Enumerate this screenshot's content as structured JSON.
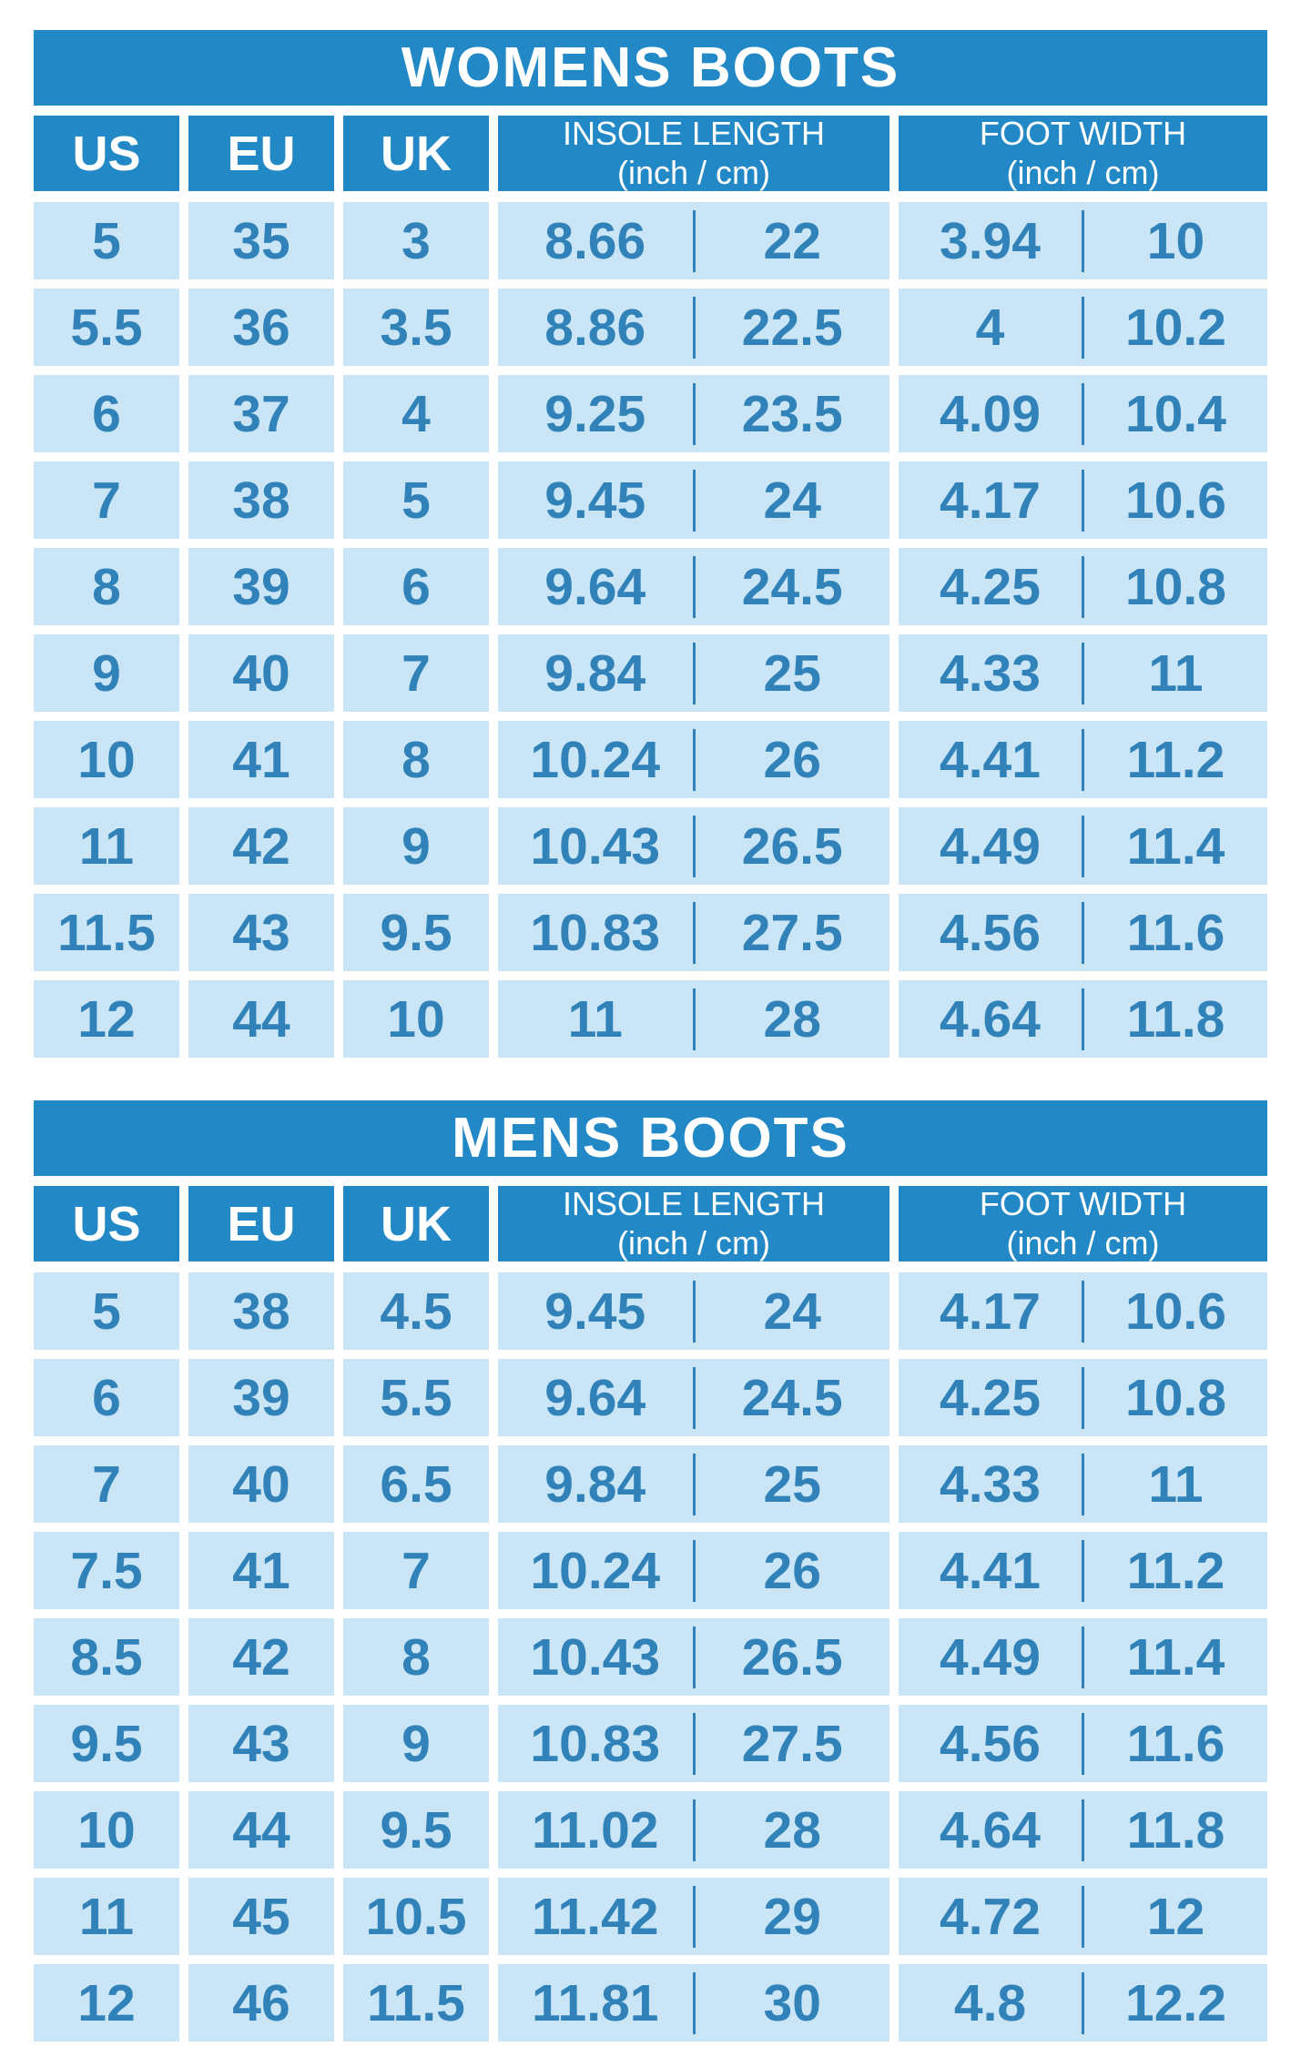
{
  "colors": {
    "header_blue": "#2389C6",
    "cell_blue": "#C9E5F6",
    "text_blue": "#3182B8",
    "page_bg": "#FFFFFF",
    "header_text": "#FFFFFF"
  },
  "column_headers": {
    "us": "US",
    "eu": "EU",
    "uk": "UK",
    "insole_length": {
      "title": "INSOLE LENGTH",
      "unit": "(inch / cm)"
    },
    "foot_width": {
      "title": "FOOT WIDTH",
      "unit": "(inch / cm)"
    }
  },
  "tables": [
    {
      "title": "WOMENS BOOTS",
      "rows": [
        {
          "us": "5",
          "eu": "35",
          "uk": "3",
          "insole_inch": "8.66",
          "insole_cm": "22",
          "foot_inch": "3.94",
          "foot_cm": "10"
        },
        {
          "us": "5.5",
          "eu": "36",
          "uk": "3.5",
          "insole_inch": "8.86",
          "insole_cm": "22.5",
          "foot_inch": "4",
          "foot_cm": "10.2"
        },
        {
          "us": "6",
          "eu": "37",
          "uk": "4",
          "insole_inch": "9.25",
          "insole_cm": "23.5",
          "foot_inch": "4.09",
          "foot_cm": "10.4"
        },
        {
          "us": "7",
          "eu": "38",
          "uk": "5",
          "insole_inch": "9.45",
          "insole_cm": "24",
          "foot_inch": "4.17",
          "foot_cm": "10.6"
        },
        {
          "us": "8",
          "eu": "39",
          "uk": "6",
          "insole_inch": "9.64",
          "insole_cm": "24.5",
          "foot_inch": "4.25",
          "foot_cm": "10.8"
        },
        {
          "us": "9",
          "eu": "40",
          "uk": "7",
          "insole_inch": "9.84",
          "insole_cm": "25",
          "foot_inch": "4.33",
          "foot_cm": "11"
        },
        {
          "us": "10",
          "eu": "41",
          "uk": "8",
          "insole_inch": "10.24",
          "insole_cm": "26",
          "foot_inch": "4.41",
          "foot_cm": "11.2"
        },
        {
          "us": "11",
          "eu": "42",
          "uk": "9",
          "insole_inch": "10.43",
          "insole_cm": "26.5",
          "foot_inch": "4.49",
          "foot_cm": "11.4"
        },
        {
          "us": "11.5",
          "eu": "43",
          "uk": "9.5",
          "insole_inch": "10.83",
          "insole_cm": "27.5",
          "foot_inch": "4.56",
          "foot_cm": "11.6"
        },
        {
          "us": "12",
          "eu": "44",
          "uk": "10",
          "insole_inch": "11",
          "insole_cm": "28",
          "foot_inch": "4.64",
          "foot_cm": "11.8"
        }
      ]
    },
    {
      "title": "MENS BOOTS",
      "rows": [
        {
          "us": "5",
          "eu": "38",
          "uk": "4.5",
          "insole_inch": "9.45",
          "insole_cm": "24",
          "foot_inch": "4.17",
          "foot_cm": "10.6"
        },
        {
          "us": "6",
          "eu": "39",
          "uk": "5.5",
          "insole_inch": "9.64",
          "insole_cm": "24.5",
          "foot_inch": "4.25",
          "foot_cm": "10.8"
        },
        {
          "us": "7",
          "eu": "40",
          "uk": "6.5",
          "insole_inch": "9.84",
          "insole_cm": "25",
          "foot_inch": "4.33",
          "foot_cm": "11"
        },
        {
          "us": "7.5",
          "eu": "41",
          "uk": "7",
          "insole_inch": "10.24",
          "insole_cm": "26",
          "foot_inch": "4.41",
          "foot_cm": "11.2"
        },
        {
          "us": "8.5",
          "eu": "42",
          "uk": "8",
          "insole_inch": "10.43",
          "insole_cm": "26.5",
          "foot_inch": "4.49",
          "foot_cm": "11.4"
        },
        {
          "us": "9.5",
          "eu": "43",
          "uk": "9",
          "insole_inch": "10.83",
          "insole_cm": "27.5",
          "foot_inch": "4.56",
          "foot_cm": "11.6"
        },
        {
          "us": "10",
          "eu": "44",
          "uk": "9.5",
          "insole_inch": "11.02",
          "insole_cm": "28",
          "foot_inch": "4.64",
          "foot_cm": "11.8"
        },
        {
          "us": "11",
          "eu": "45",
          "uk": "10.5",
          "insole_inch": "11.42",
          "insole_cm": "29",
          "foot_inch": "4.72",
          "foot_cm": "12"
        },
        {
          "us": "12",
          "eu": "46",
          "uk": "11.5",
          "insole_inch": "11.81",
          "insole_cm": "30",
          "foot_inch": "4.8",
          "foot_cm": "12.2"
        }
      ]
    }
  ],
  "chart_data": [
    {
      "type": "table",
      "title": "WOMENS BOOTS",
      "columns": [
        "US",
        "EU",
        "UK",
        "INSOLE LENGTH (inch)",
        "INSOLE LENGTH (cm)",
        "FOOT WIDTH (inch)",
        "FOOT WIDTH (cm)"
      ],
      "rows": [
        [
          5,
          35,
          3,
          8.66,
          22,
          3.94,
          10
        ],
        [
          5.5,
          36,
          3.5,
          8.86,
          22.5,
          4,
          10.2
        ],
        [
          6,
          37,
          4,
          9.25,
          23.5,
          4.09,
          10.4
        ],
        [
          7,
          38,
          5,
          9.45,
          24,
          4.17,
          10.6
        ],
        [
          8,
          39,
          6,
          9.64,
          24.5,
          4.25,
          10.8
        ],
        [
          9,
          40,
          7,
          9.84,
          25,
          4.33,
          11
        ],
        [
          10,
          41,
          8,
          10.24,
          26,
          4.41,
          11.2
        ],
        [
          11,
          42,
          9,
          10.43,
          26.5,
          4.49,
          11.4
        ],
        [
          11.5,
          43,
          9.5,
          10.83,
          27.5,
          4.56,
          11.6
        ],
        [
          12,
          44,
          10,
          11,
          28,
          4.64,
          11.8
        ]
      ]
    },
    {
      "type": "table",
      "title": "MENS BOOTS",
      "columns": [
        "US",
        "EU",
        "UK",
        "INSOLE LENGTH (inch)",
        "INSOLE LENGTH (cm)",
        "FOOT WIDTH (inch)",
        "FOOT WIDTH (cm)"
      ],
      "rows": [
        [
          5,
          38,
          4.5,
          9.45,
          24,
          4.17,
          10.6
        ],
        [
          6,
          39,
          5.5,
          9.64,
          24.5,
          4.25,
          10.8
        ],
        [
          7,
          40,
          6.5,
          9.84,
          25,
          4.33,
          11
        ],
        [
          7.5,
          41,
          7,
          10.24,
          26,
          4.41,
          11.2
        ],
        [
          8.5,
          42,
          8,
          10.43,
          26.5,
          4.49,
          11.4
        ],
        [
          9.5,
          43,
          9,
          10.83,
          27.5,
          4.56,
          11.6
        ],
        [
          10,
          44,
          9.5,
          11.02,
          28,
          4.64,
          11.8
        ],
        [
          11,
          45,
          10.5,
          11.42,
          29,
          4.72,
          12
        ],
        [
          12,
          46,
          11.5,
          11.81,
          30,
          4.8,
          12.2
        ]
      ]
    }
  ]
}
